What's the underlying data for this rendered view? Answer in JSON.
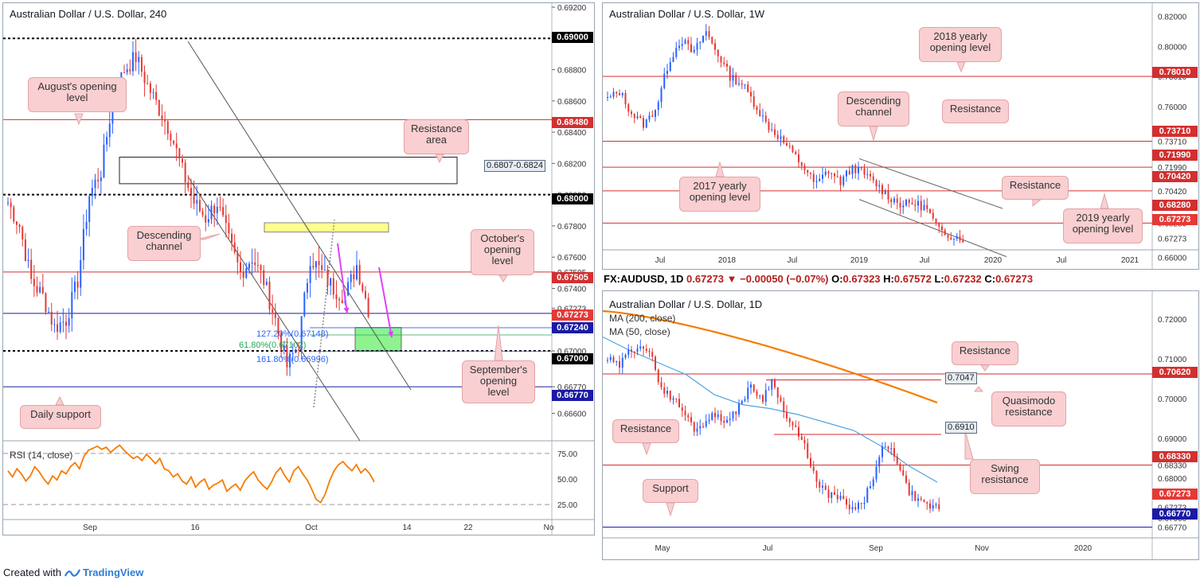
{
  "footer": {
    "created_with": "Created with",
    "brand": "TradingView"
  },
  "chart_data": [
    {
      "type": "candlestick",
      "title": "Australian Dollar / U.S. Dollar, 240",
      "indicator_label": "RSI (14, close)",
      "x_ticks": [
        "Sep",
        "16",
        "Oct",
        "14",
        "22",
        "No"
      ],
      "y_ticks": [
        "0.69200",
        "0.69000",
        "0.68800",
        "0.68600",
        "0.68480",
        "0.68400",
        "0.68200",
        "0.68000",
        "0.67800",
        "0.67600",
        "0.67505",
        "0.67400",
        "0.67273",
        "0.67240",
        "0.67000",
        "0.66770",
        "0.66600"
      ],
      "ylim": [
        0.6645,
        0.692
      ],
      "rsi_ticks": [
        "75.00",
        "50.00",
        "25.00"
      ],
      "rsi_series": [
        58,
        52,
        60,
        55,
        48,
        53,
        62,
        57,
        50,
        45,
        53,
        49,
        58,
        55,
        62,
        66,
        60,
        72,
        78,
        80,
        82,
        79,
        81,
        76,
        80,
        83,
        78,
        74,
        70,
        72,
        68,
        74,
        70,
        65,
        70,
        60,
        58,
        52,
        55,
        48,
        45,
        52,
        42,
        47,
        50,
        40,
        44,
        46,
        49,
        38,
        42,
        45,
        39,
        48,
        53,
        57,
        49,
        44,
        40,
        47,
        56,
        61,
        53,
        47,
        58,
        62,
        55,
        49,
        40,
        30,
        27,
        35,
        48,
        58,
        64,
        67,
        62,
        58,
        64,
        56,
        60,
        55,
        47
      ],
      "levels": [
        {
          "label": "0.69000",
          "kind": "round-number",
          "value": 0.69
        },
        {
          "label": "0.68480",
          "kind": "resistance",
          "value": 0.6848
        },
        {
          "label": "0.68000",
          "kind": "round-number",
          "value": 0.68
        },
        {
          "label": "0.67505",
          "kind": "resistance",
          "value": 0.67505
        },
        {
          "label": "0.67273",
          "kind": "current-price",
          "value": 0.67273
        },
        {
          "label": "0.67240",
          "kind": "support",
          "value": 0.6724
        },
        {
          "label": "0.67000",
          "kind": "round-number",
          "value": 0.67
        },
        {
          "label": "0.66770",
          "kind": "support",
          "value": 0.6677
        }
      ],
      "resistance_area": {
        "label": "0.6807-0.6824",
        "low": 0.6807,
        "high": 0.6824
      },
      "fib_labels": [
        "127.20%(0.67148)",
        "61.80%(0.67102)",
        "161.80%(0.66996)"
      ],
      "annotations": [
        "August's opening level",
        "Resistance area",
        "Descending channel",
        "October's opening level",
        "September's opening level",
        "Daily support"
      ],
      "colors": {
        "up": "#2962ff",
        "down": "#e53935",
        "resistance": "#d32f2f",
        "support": "#1a1aa6",
        "rsi": "#f57c00",
        "zone": "#8ef28e",
        "supply_zone": "#ffff8d",
        "arrow": "#e040fb"
      }
    },
    {
      "type": "candlestick",
      "title": "Australian Dollar / U.S. Dollar, 1W",
      "x_ticks": [
        "Jul",
        "2018",
        "Jul",
        "2019",
        "Jul",
        "2020",
        "Jul",
        "2021"
      ],
      "y_ticks": [
        "0.82000",
        "0.80000",
        "0.78010",
        "0.76000",
        "0.73710",
        "0.71990",
        "0.70420",
        "0.68280",
        "0.67273",
        "0.66000"
      ],
      "ylim": [
        0.6545,
        0.826
      ],
      "levels": [
        {
          "label": "0.78010",
          "value": 0.7801
        },
        {
          "label": "0.73710",
          "value": 0.7371
        },
        {
          "label": "0.71990",
          "value": 0.7199
        },
        {
          "label": "0.70420",
          "value": 0.7042
        },
        {
          "label": "0.68280",
          "value": 0.6828
        },
        {
          "label": "0.67273",
          "value": 0.67273
        }
      ],
      "annotations": [
        "2018 yearly opening level",
        "Descending channel",
        "Resistance",
        "2017 yearly opening level",
        "Resistance",
        "2019 yearly opening level"
      ]
    },
    {
      "type": "candlestick",
      "title": "Australian Dollar / U.S. Dollar, 1D",
      "ohlc_prefix": "FX:AUDUSD, 1D",
      "ohlc_close": "0.67273",
      "ohlc_change": "−0.00050 (−0.07%)",
      "ohlc_o": "0.67323",
      "ohlc_h": "0.67572",
      "ohlc_l": "0.67232",
      "ohlc_c": "0.67273",
      "indicators": [
        "MA (200, close)",
        "MA (50, close)"
      ],
      "x_ticks": [
        "May",
        "Jul",
        "Sep",
        "Nov",
        "2020"
      ],
      "y_ticks": [
        "0.72000",
        "0.71000",
        "0.70620",
        "0.70000",
        "0.69000",
        "0.68330",
        "0.68000",
        "0.67273",
        "0.67000",
        "0.66770"
      ],
      "ylim": [
        0.665,
        0.726
      ],
      "levels": [
        {
          "label": "0.70620",
          "value": 0.7062
        },
        {
          "label": "0.68330",
          "value": 0.6833
        },
        {
          "label": "0.66770",
          "value": 0.6677
        }
      ],
      "boxed_values": [
        "0.7047",
        "0.6910"
      ],
      "annotations": [
        "Resistance",
        "Quasimodo resistance",
        "Resistance",
        "Swing resistance",
        "Support"
      ],
      "colors": {
        "ma200": "#f57c00",
        "ma50": "#4fa3e0"
      }
    }
  ]
}
